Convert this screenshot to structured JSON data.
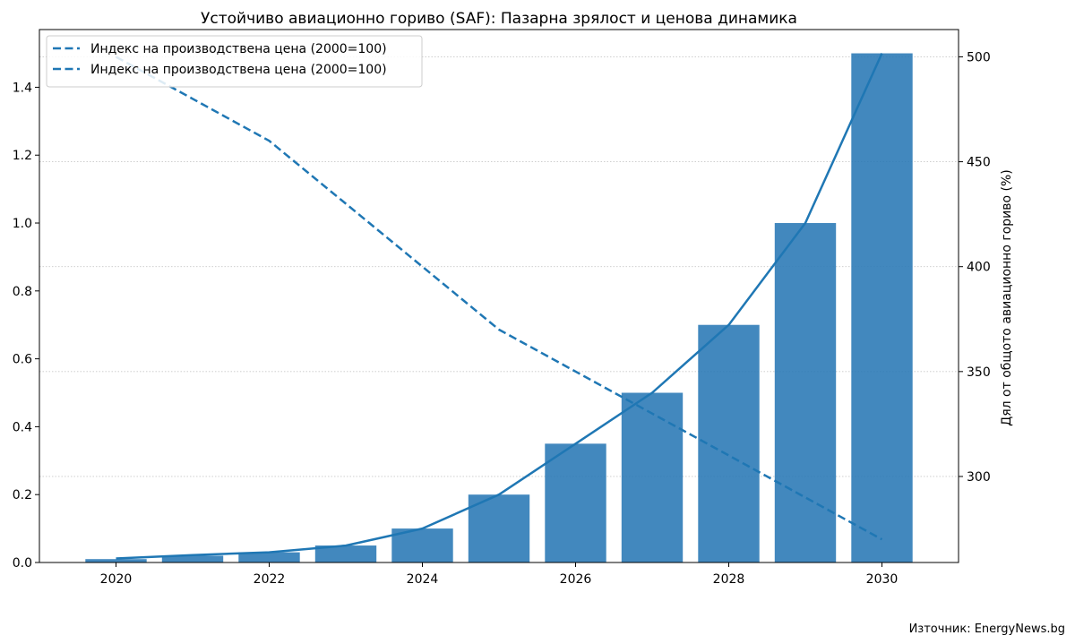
{
  "chart_data": {
    "type": "bar",
    "title": "Устойчиво авиационно гориво (SAF): Пазарна зрялост и ценова динамика",
    "x": [
      2020,
      2021,
      2022,
      2023,
      2024,
      2025,
      2026,
      2027,
      2028,
      2029,
      2030
    ],
    "x_ticks": [
      "2020",
      "2022",
      "2024",
      "2026",
      "2028",
      "2030"
    ],
    "xlim": [
      2019,
      2031
    ],
    "y_left": {
      "label": "",
      "ylim": [
        0,
        1.57
      ],
      "ticks": [
        "0.0",
        "0.2",
        "0.4",
        "0.6",
        "0.8",
        "1.0",
        "1.2",
        "1.4"
      ]
    },
    "y_right": {
      "label": "Дял от общото авиационно гориво (%)",
      "ylim": [
        259,
        513
      ],
      "ticks": [
        "300",
        "350",
        "400",
        "450",
        "500"
      ]
    },
    "series": [
      {
        "kind": "bar",
        "axis": "left",
        "color": "#2878b5",
        "values": [
          0.01,
          0.02,
          0.03,
          0.05,
          0.1,
          0.2,
          0.35,
          0.5,
          0.7,
          1.0,
          1.5
        ]
      },
      {
        "kind": "line",
        "axis": "left",
        "style": "solid",
        "color": "#1f77b4",
        "values": [
          0.012,
          0.022,
          0.03,
          0.05,
          0.1,
          0.2,
          0.35,
          0.5,
          0.7,
          1.0,
          1.5
        ]
      },
      {
        "kind": "line",
        "axis": "right",
        "style": "dashed",
        "color": "#1f77b4",
        "name": "Индекс на производствена цена (2000=100)",
        "values": [
          500,
          480,
          460,
          430,
          400,
          370,
          350,
          330,
          310,
          290,
          270
        ]
      }
    ],
    "legend": {
      "placement": "top-left",
      "entries": [
        "Индекс на производствена цена (2000=100)",
        "Индекс на производствена цена (2000=100)"
      ]
    },
    "grid": "horizontal dotted",
    "source": "Източник: EnergyNews.bg"
  }
}
